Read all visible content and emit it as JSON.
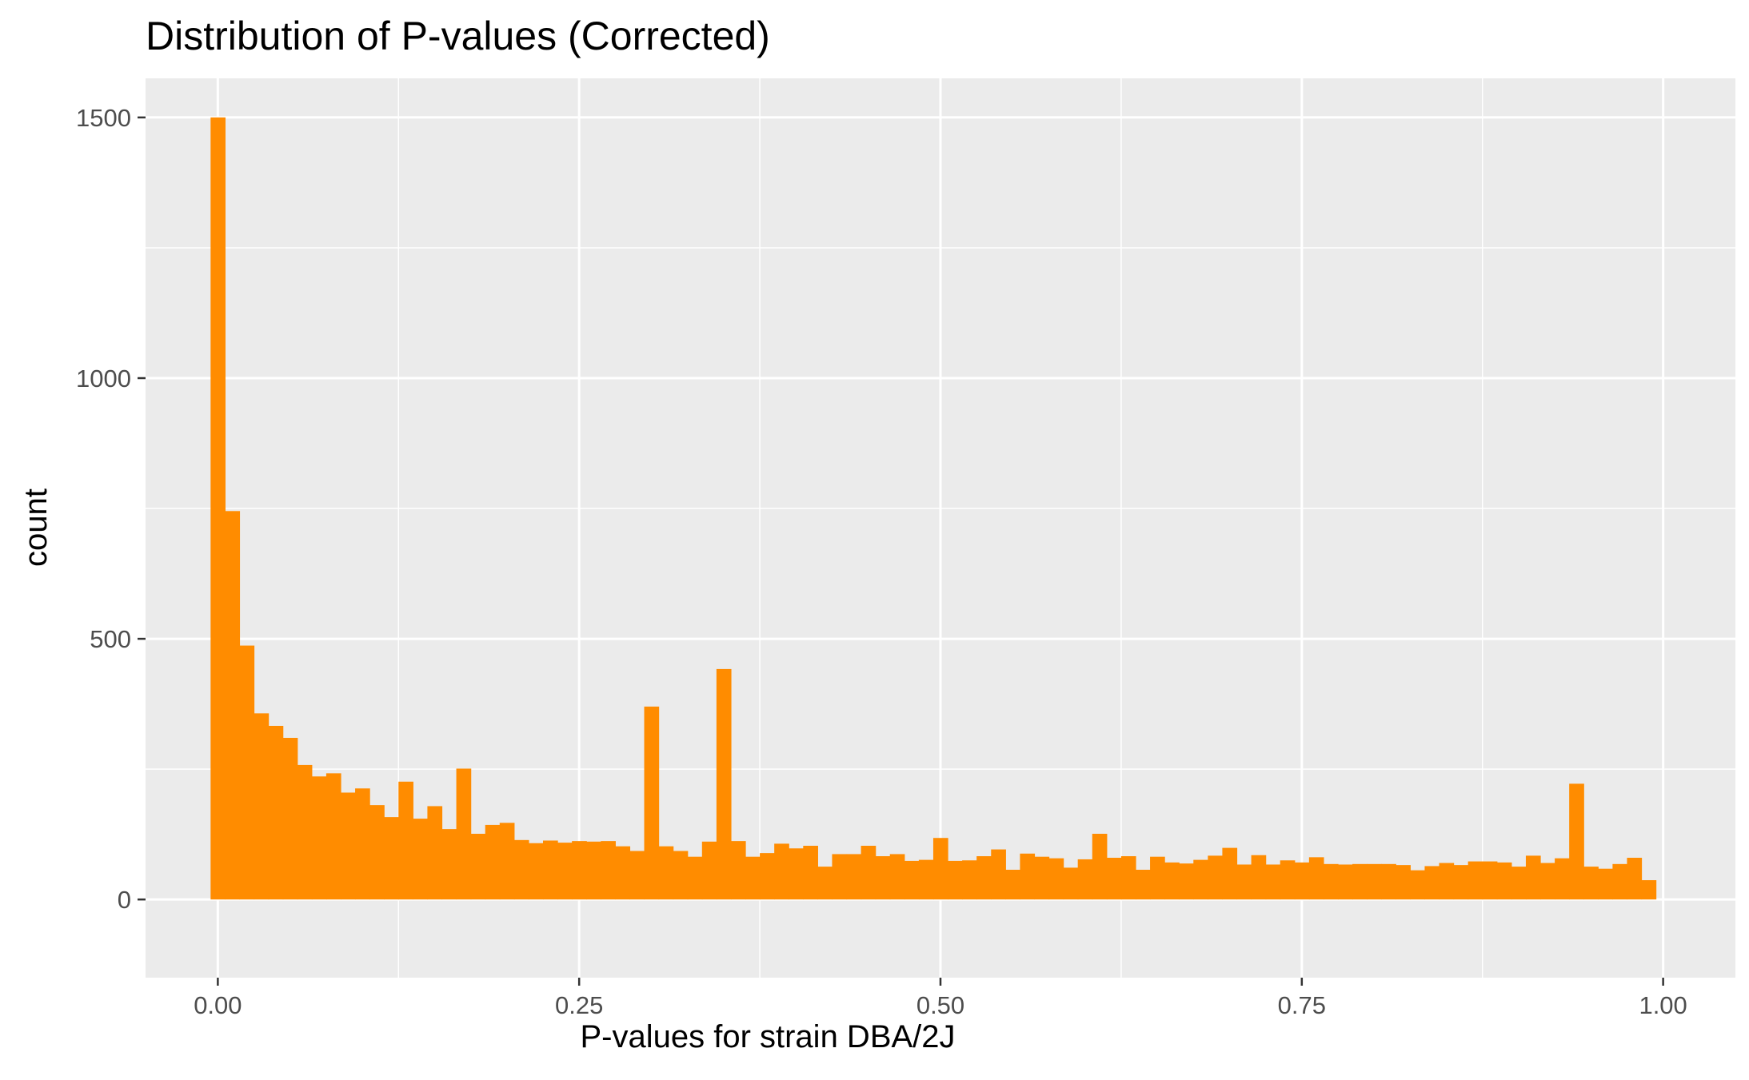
{
  "chart_data": {
    "type": "histogram",
    "title": "Distribution of P-values (Corrected)",
    "xlabel": "P-values for strain DBA/2J",
    "ylabel": "count",
    "xlim": [
      -0.05,
      1.05
    ],
    "ylim": [
      -150,
      1575
    ],
    "x_ticks": [
      {
        "value": 0.0,
        "label": "0.00"
      },
      {
        "value": 0.25,
        "label": "0.25"
      },
      {
        "value": 0.5,
        "label": "0.50"
      },
      {
        "value": 0.75,
        "label": "0.75"
      },
      {
        "value": 1.0,
        "label": "1.00"
      }
    ],
    "y_ticks": [
      {
        "value": 0,
        "label": "0"
      },
      {
        "value": 500,
        "label": "500"
      },
      {
        "value": 1000,
        "label": "1000"
      },
      {
        "value": 1500,
        "label": "1500"
      }
    ],
    "grid": true,
    "bins": 100,
    "bin_start": -0.005,
    "bin_width": 0.01,
    "fill_color": "#FF8C00",
    "panel_color": "#EBEBEB",
    "grid_color": "#FFFFFF",
    "values": [
      1500,
      745,
      487,
      357,
      333,
      310,
      258,
      236,
      242,
      205,
      213,
      181,
      158,
      226,
      155,
      179,
      135,
      251,
      126,
      143,
      147,
      114,
      108,
      113,
      109,
      112,
      111,
      112,
      102,
      93,
      370,
      102,
      93,
      82,
      111,
      442,
      112,
      82,
      89,
      107,
      98,
      103,
      63,
      87,
      87,
      103,
      83,
      87,
      74,
      76,
      118,
      74,
      75,
      83,
      96,
      57,
      88,
      82,
      79,
      61,
      77,
      126,
      80,
      83,
      57,
      82,
      71,
      69,
      76,
      84,
      99,
      67,
      85,
      67,
      75,
      71,
      81,
      68,
      67,
      68,
      68,
      68,
      66,
      56,
      64,
      70,
      66,
      73,
      73,
      71,
      63,
      84,
      70,
      79,
      222,
      63,
      59,
      68,
      80,
      37
    ]
  }
}
